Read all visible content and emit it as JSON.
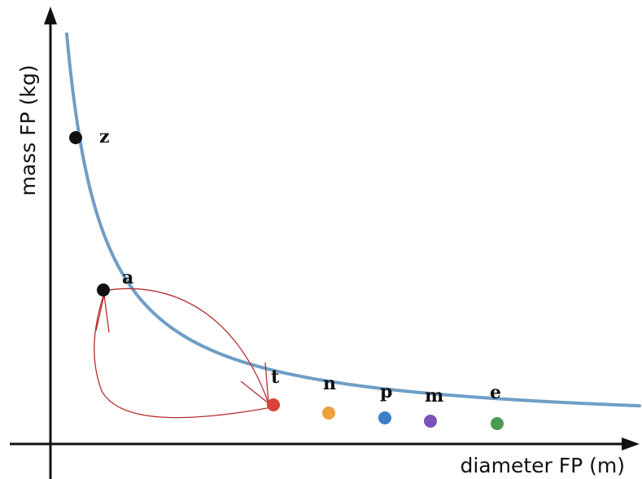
{
  "axes": {
    "x_label": "diameter FP (m)",
    "y_label": "mass FP (kg)"
  },
  "points": [
    {
      "label": "z",
      "color": "#111111"
    },
    {
      "label": "a",
      "color": "#111111"
    },
    {
      "label": "t",
      "color": "#d9413a"
    },
    {
      "label": "n",
      "color": "#f0a040"
    },
    {
      "label": "p",
      "color": "#3a7fc8"
    },
    {
      "label": "m",
      "color": "#7b52b8"
    },
    {
      "label": "e",
      "color": "#4a9a50"
    }
  ],
  "colors": {
    "curve": "#6f9ec6",
    "arrows": "#b72e2e",
    "axes": "#111111"
  }
}
